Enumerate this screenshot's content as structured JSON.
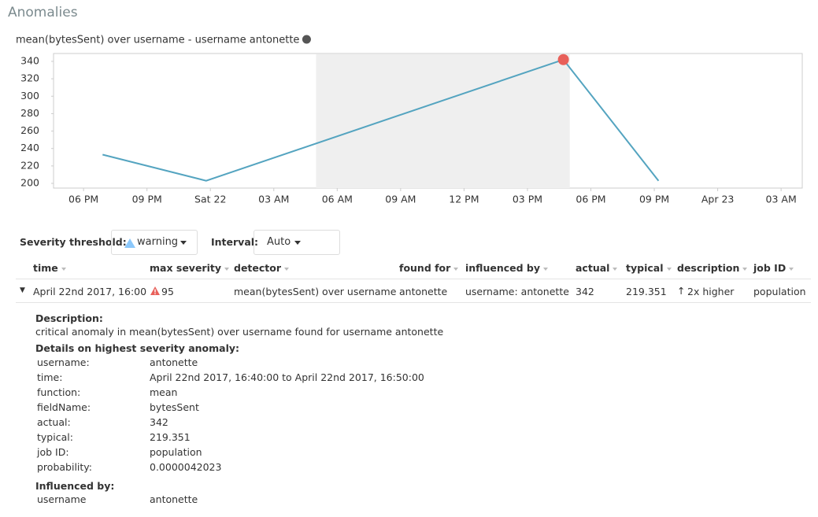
{
  "header": {
    "title": "Anomalies"
  },
  "chart_data": {
    "type": "line",
    "title": "mean(bytesSent) over username - username antonette",
    "x": [
      0.9,
      5.8,
      22.7,
      27.2
    ],
    "values": [
      233,
      203,
      342,
      203
    ],
    "color": "#54a4c0",
    "anomaly_index": 2,
    "anomaly_color": "#e8605a",
    "shaded_range": [
      11,
      23
    ],
    "xlim": [
      -1.42,
      34.0
    ],
    "xticks": [
      {
        "value": 0,
        "label": "06 PM"
      },
      {
        "value": 3,
        "label": "09 PM"
      },
      {
        "value": 6,
        "label": "Sat 22"
      },
      {
        "value": 9,
        "label": "03 AM"
      },
      {
        "value": 12,
        "label": "06 AM"
      },
      {
        "value": 15,
        "label": "09 AM"
      },
      {
        "value": 18,
        "label": "12 PM"
      },
      {
        "value": 21,
        "label": "03 PM"
      },
      {
        "value": 24,
        "label": "06 PM"
      },
      {
        "value": 27,
        "label": "09 PM"
      },
      {
        "value": 30,
        "label": "Apr 23"
      },
      {
        "value": 33,
        "label": "03 AM"
      }
    ],
    "ylim": [
      194.6,
      349
    ],
    "yticks": [
      200,
      220,
      240,
      260,
      280,
      300,
      320,
      340
    ]
  },
  "controls": {
    "severity_label": "Severity threshold:",
    "severity_value": "warning",
    "interval_label": "Interval:",
    "interval_value": "Auto"
  },
  "table": {
    "columns": [
      "time",
      "max severity",
      "detector",
      "found for",
      "influenced by",
      "actual",
      "typical",
      "description",
      "job ID"
    ],
    "rows": [
      [
        "April 22nd 2017, 16:00",
        "95",
        "mean(bytesSent) over username",
        "antonette",
        "username: antonette",
        "342",
        "219.351",
        "2x higher",
        "population"
      ]
    ]
  },
  "details": {
    "description_heading": "Description:",
    "description": "critical anomaly in mean(bytesSent) over username found for username antonette",
    "details_heading": "Details on highest severity anomaly:",
    "fields": [
      [
        "username:",
        "antonette"
      ],
      [
        "time:",
        "April 22nd 2017, 16:40:00 to April 22nd 2017, 16:50:00"
      ],
      [
        "function:",
        "mean"
      ],
      [
        "fieldName:",
        "bytesSent"
      ],
      [
        "actual:",
        "342"
      ],
      [
        "typical:",
        "219.351"
      ],
      [
        "job ID:",
        "population"
      ],
      [
        "probability:",
        "0.0000042023"
      ]
    ],
    "influencers_heading": "Influenced by:",
    "influencers": [
      [
        "username",
        "antonette"
      ]
    ]
  }
}
